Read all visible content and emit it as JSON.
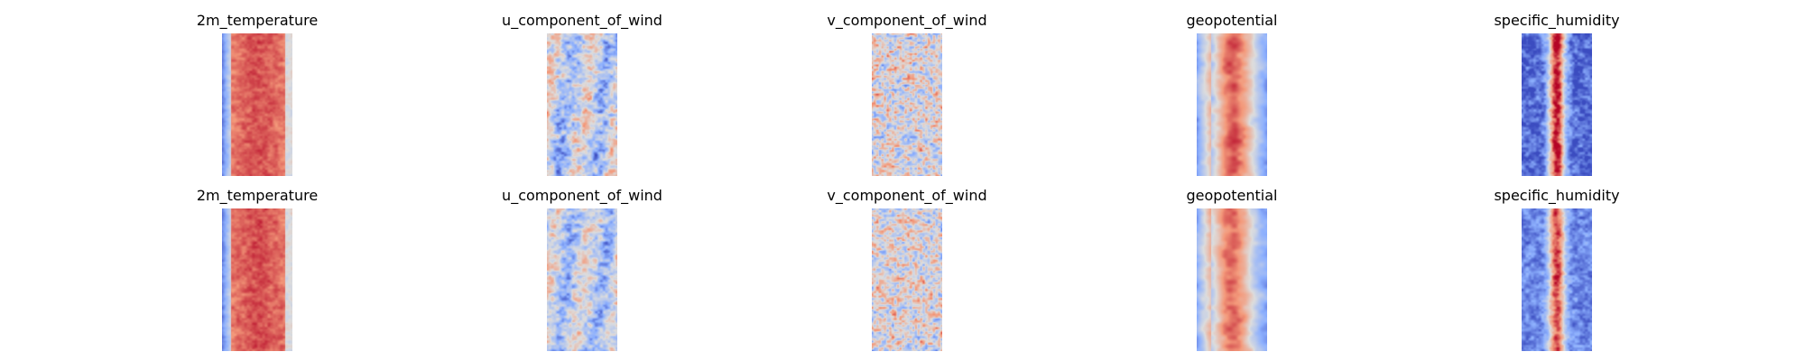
{
  "chart_data": {
    "type": "heatmap",
    "colormap": "coolwarm",
    "colormap_stops": [
      "#3b4cc0",
      "#8db0fe",
      "#dddddd",
      "#f49a7b",
      "#b40426"
    ],
    "axes": "off",
    "rows": [
      {
        "panels": [
          {
            "title": "2m_temperature",
            "pattern": "temperature",
            "intensity": 0.85
          },
          {
            "title": "u_component_of_wind",
            "pattern": "uwind",
            "intensity": 0.6
          },
          {
            "title": "v_component_of_wind",
            "pattern": "vwind",
            "intensity": 0.55
          },
          {
            "title": "geopotential",
            "pattern": "geopotential",
            "intensity": 0.85
          },
          {
            "title": "specific_humidity",
            "pattern": "humidity",
            "intensity": 0.9
          }
        ]
      },
      {
        "panels": [
          {
            "title": "2m_temperature",
            "pattern": "temperature",
            "intensity": 0.9
          },
          {
            "title": "u_component_of_wind",
            "pattern": "uwind",
            "intensity": 0.45
          },
          {
            "title": "v_component_of_wind",
            "pattern": "vwind",
            "intensity": 0.5
          },
          {
            "title": "geopotential",
            "pattern": "geopotential",
            "intensity": 0.7
          },
          {
            "title": "specific_humidity",
            "pattern": "humidity",
            "intensity": 0.55
          }
        ]
      }
    ]
  }
}
